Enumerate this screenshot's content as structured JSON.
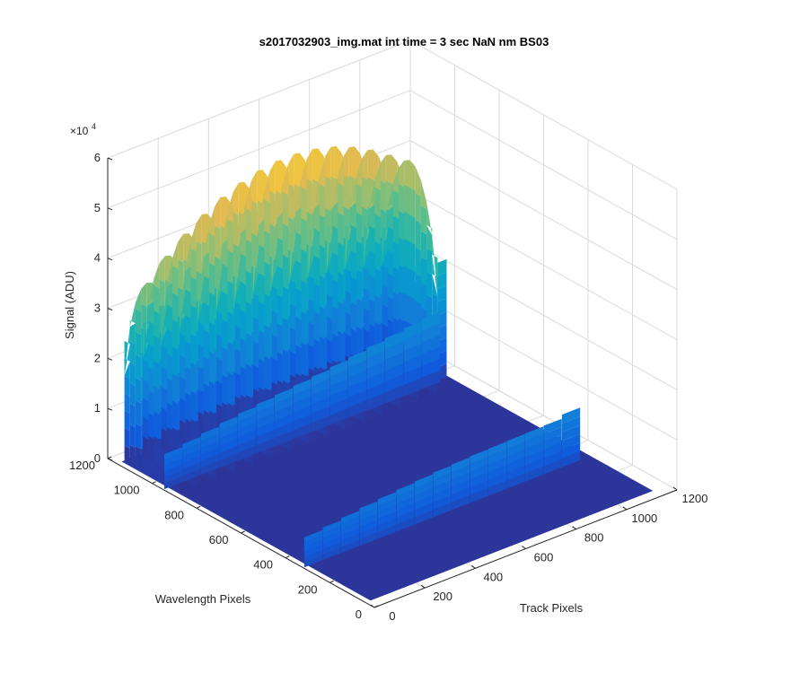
{
  "chart_data": {
    "type": "surface",
    "title": "s2017032903_img.mat int time = 3 sec  NaN nm BS03",
    "xlabel": "Track Pixels",
    "ylabel": "Wavelength Pixels",
    "zlabel": "Signal (ADU)",
    "xlim": [
      0,
      1200
    ],
    "ylim": [
      0,
      1200
    ],
    "zlim": [
      0,
      60000
    ],
    "x_ticks": [
      "0",
      "200",
      "400",
      "600",
      "800",
      "1000",
      "1200"
    ],
    "y_ticks": [
      "0",
      "200",
      "400",
      "600",
      "800",
      "1000",
      "1200"
    ],
    "z_ticks": [
      "0",
      "1",
      "2",
      "3",
      "4",
      "5",
      "6"
    ],
    "z_multiplier": "×10",
    "z_multiplier_exp": "4",
    "grid": true,
    "colormap": "parula",
    "tracks": {
      "count": 15,
      "x_start": 40,
      "x_spacing": 73,
      "y_range_tall_region": [
        900,
        1150
      ],
      "peak_values_tall": [
        39000,
        43000,
        46000,
        48500,
        50500,
        52000,
        53000,
        53500,
        53500,
        53000,
        52000,
        50500,
        48500,
        46000,
        43500
      ],
      "mid_band_y": 950,
      "mid_band_values": [
        7000,
        7600,
        8200,
        8800,
        9300,
        9800,
        10200,
        10600,
        11000,
        11500,
        12000,
        12500,
        13000,
        13500,
        14000
      ],
      "lower_band_y_range": [
        60,
        320
      ],
      "lower_band_values": [
        6000,
        6500,
        7000,
        7500,
        7900,
        8300,
        8600,
        8900,
        9100,
        9300,
        9400,
        9500,
        9600,
        9700,
        10500
      ]
    }
  }
}
